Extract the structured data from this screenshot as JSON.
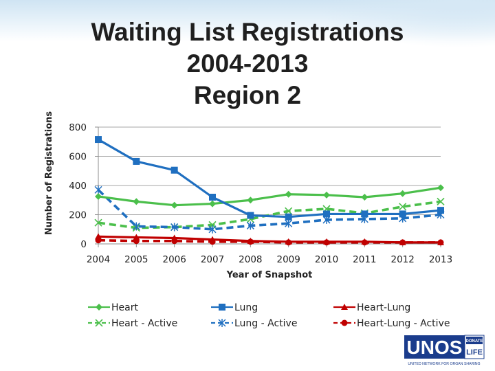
{
  "title_lines": [
    "Waiting List Registrations",
    "2004-2013",
    "Region 2"
  ],
  "logo": {
    "text": "UNOS",
    "badge_top": "DONATE",
    "badge_bottom": "LIFE",
    "tagline": "UNITED NETWORK FOR ORGAN SHARING"
  },
  "chart_data": {
    "type": "line",
    "title": "Waiting List Registrations 2004-2013 Region 2",
    "xlabel": "Year of Snapshot",
    "ylabel": "Number of Registrations",
    "x": [
      "2004",
      "2005",
      "2006",
      "2007",
      "2008",
      "2009",
      "2010",
      "2011",
      "2012",
      "2013"
    ],
    "ylim": [
      0,
      800
    ],
    "yticks": [
      0,
      200,
      400,
      600,
      800
    ],
    "grid": "horizontal",
    "legend_position": "bottom",
    "series": [
      {
        "name": "Heart",
        "values": [
          325,
          290,
          265,
          275,
          300,
          340,
          335,
          320,
          345,
          385
        ],
        "color": "#4bbf4b",
        "dash": "solid",
        "marker": "diamond"
      },
      {
        "name": "Lung",
        "values": [
          715,
          565,
          505,
          320,
          195,
          185,
          205,
          205,
          205,
          230
        ],
        "color": "#1f6fc0",
        "dash": "solid",
        "marker": "square"
      },
      {
        "name": "Heart-Lung",
        "values": [
          50,
          45,
          40,
          30,
          20,
          15,
          15,
          15,
          10,
          10
        ],
        "color": "#c00000",
        "dash": "solid",
        "marker": "triangle"
      },
      {
        "name": "Heart - Active",
        "values": [
          145,
          110,
          115,
          130,
          170,
          225,
          240,
          210,
          255,
          290
        ],
        "color": "#4bbf4b",
        "dash": "dashed",
        "marker": "x"
      },
      {
        "name": "Lung - Active",
        "values": [
          370,
          120,
          115,
          100,
          125,
          140,
          165,
          170,
          175,
          200
        ],
        "color": "#1f6fc0",
        "dash": "dashed",
        "marker": "star"
      },
      {
        "name": "Heart-Lung - Active",
        "values": [
          25,
          20,
          20,
          15,
          15,
          10,
          10,
          10,
          10,
          10
        ],
        "color": "#c00000",
        "dash": "dashed",
        "marker": "circle"
      }
    ]
  }
}
